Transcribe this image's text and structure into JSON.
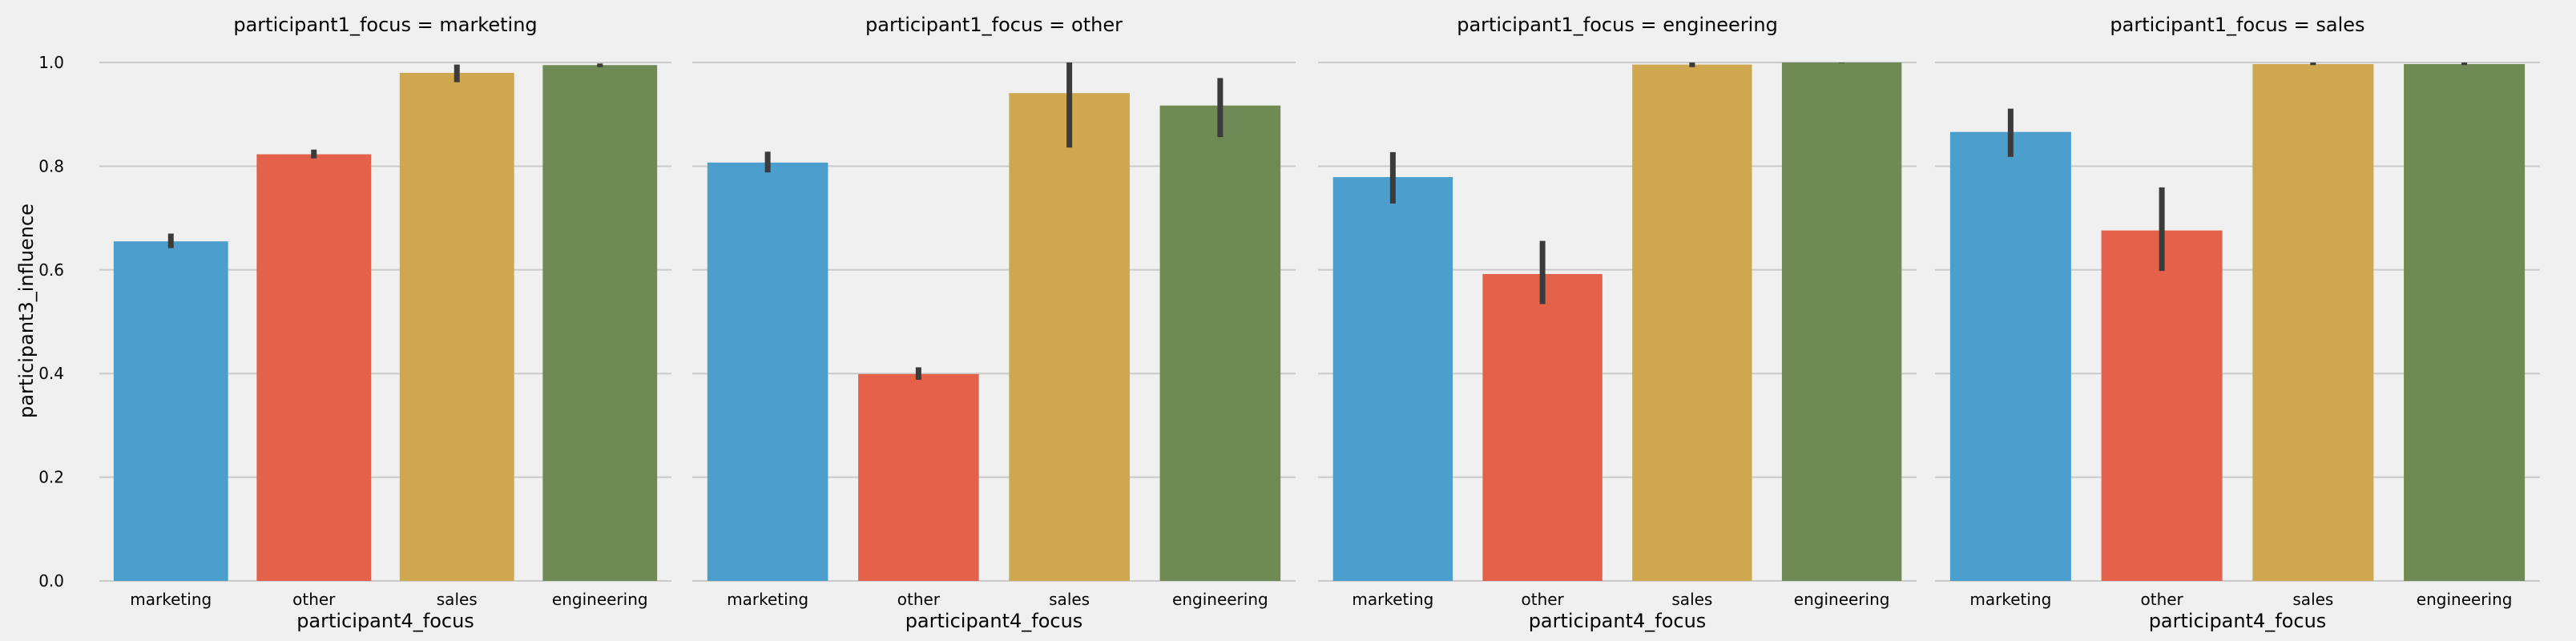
{
  "chart_data": {
    "type": "bar",
    "ylabel": "participant3_influence",
    "xlabel": "participant4_focus",
    "ylim": [
      0,
      1.0
    ],
    "yticks": [
      "0.0",
      "0.2",
      "0.4",
      "0.6",
      "0.8",
      "1.0"
    ],
    "categories": [
      "marketing",
      "other",
      "sales",
      "engineering"
    ],
    "colors": [
      "#4c9fcc",
      "#e5624a",
      "#cfa74e",
      "#708a56"
    ],
    "error_color": "#3b3b3b",
    "grid": "horizontal",
    "panels": [
      {
        "title": "participant1_focus = marketing",
        "values": [
          0.655,
          0.823,
          0.98,
          0.995
        ],
        "errors": [
          [
            0.642,
            0.67
          ],
          [
            0.815,
            0.832
          ],
          [
            0.962,
            0.996
          ],
          [
            0.991,
            0.998
          ]
        ]
      },
      {
        "title": "participant1_focus = other",
        "values": [
          0.807,
          0.399,
          0.941,
          0.917
        ],
        "errors": [
          [
            0.788,
            0.828
          ],
          [
            0.388,
            0.412
          ],
          [
            0.836,
            1.0
          ],
          [
            0.856,
            0.97
          ]
        ]
      },
      {
        "title": "participant1_focus = engineering",
        "values": [
          0.779,
          0.592,
          0.996,
          1.0
        ],
        "errors": [
          [
            0.728,
            0.827
          ],
          [
            0.534,
            0.656
          ],
          [
            0.991,
            1.0
          ],
          [
            0.999,
            1.0
          ]
        ]
      },
      {
        "title": "participant1_focus = sales",
        "values": [
          0.866,
          0.676,
          0.997,
          0.997
        ],
        "errors": [
          [
            0.818,
            0.911
          ],
          [
            0.598,
            0.759
          ],
          [
            0.995,
            1.0
          ],
          [
            0.995,
            1.0
          ]
        ]
      }
    ]
  }
}
